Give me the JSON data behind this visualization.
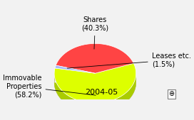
{
  "slices": [
    58.2,
    40.3,
    1.5
  ],
  "labels": [
    "Immovable\nProperties\n(58.2%)",
    "Shares\n(40.3%)",
    "Leases etc.\n(1.5%)"
  ],
  "colors_top": [
    "#ddff00",
    "#ff4444",
    "#aabbff"
  ],
  "colors_side": [
    "#aacc00",
    "#cc2222",
    "#7788cc"
  ],
  "startangle": 170,
  "title": "2004-05",
  "title_fontsize": 8,
  "label_fontsize": 7,
  "figsize": [
    2.72,
    1.69
  ],
  "dpi": 100,
  "background_color": "#f2f2f2"
}
